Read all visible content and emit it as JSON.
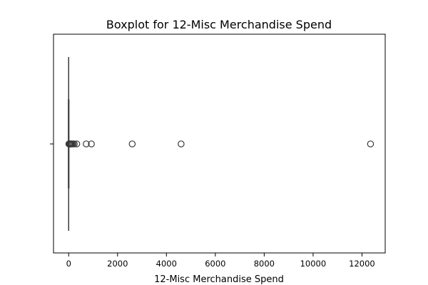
{
  "chart_data": {
    "type": "boxplot",
    "title": "Boxplot for 12-Misc Merchandise Spend",
    "xlabel": "12-Misc Merchandise Spend",
    "ylabel": "",
    "orientation": "horizontal",
    "xlim": [
      -620,
      12950
    ],
    "xticks": [
      0,
      2000,
      4000,
      6000,
      8000,
      10000,
      12000
    ],
    "grid": false,
    "box": {
      "q1": 0,
      "median": 0,
      "q3": 0,
      "whisker_low": 0,
      "whisker_high": 0
    },
    "outliers": [
      10,
      20,
      30,
      40,
      55,
      70,
      90,
      110,
      140,
      180,
      230,
      330,
      720,
      930,
      2600,
      4600,
      12350
    ],
    "colors": {
      "box": "#3b3b3b",
      "marker_edge": "#3b3b3b",
      "axis": "#000000"
    }
  }
}
